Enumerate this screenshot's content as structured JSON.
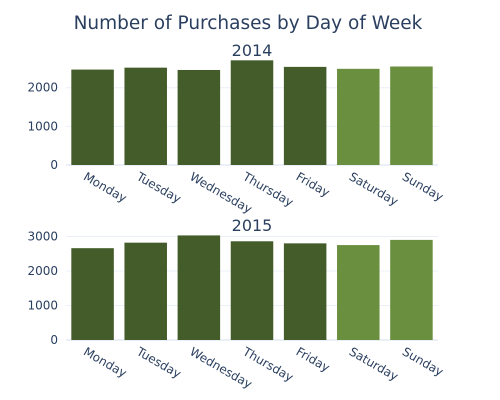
{
  "chart_data": {
    "type": "bar",
    "title": "Number of Purchases by Day of Week",
    "colors": {
      "weekday": "#435c29",
      "weekend": "#6a8f3f",
      "text": "#2a3f5f",
      "grid": "#ebf0f8"
    },
    "subplots": [
      {
        "title": "2014",
        "categories": [
          "Monday",
          "Tuesday",
          "Wednesday",
          "Thursday",
          "Friday",
          "Saturday",
          "Sunday"
        ],
        "values": [
          2470,
          2520,
          2460,
          2710,
          2540,
          2490,
          2550
        ],
        "weekend": [
          false,
          false,
          false,
          false,
          false,
          true,
          true
        ],
        "ylim": [
          0,
          2770
        ],
        "yticks": [
          0,
          1000,
          2000
        ],
        "grid": true
      },
      {
        "title": "2015",
        "categories": [
          "Monday",
          "Tuesday",
          "Wednesday",
          "Thursday",
          "Friday",
          "Saturday",
          "Sunday"
        ],
        "values": [
          2660,
          2820,
          3030,
          2860,
          2800,
          2750,
          2900
        ],
        "weekend": [
          false,
          false,
          false,
          false,
          false,
          true,
          true
        ],
        "ylim": [
          0,
          3100
        ],
        "yticks": [
          0,
          1000,
          2000,
          3000
        ],
        "grid": true
      }
    ]
  }
}
